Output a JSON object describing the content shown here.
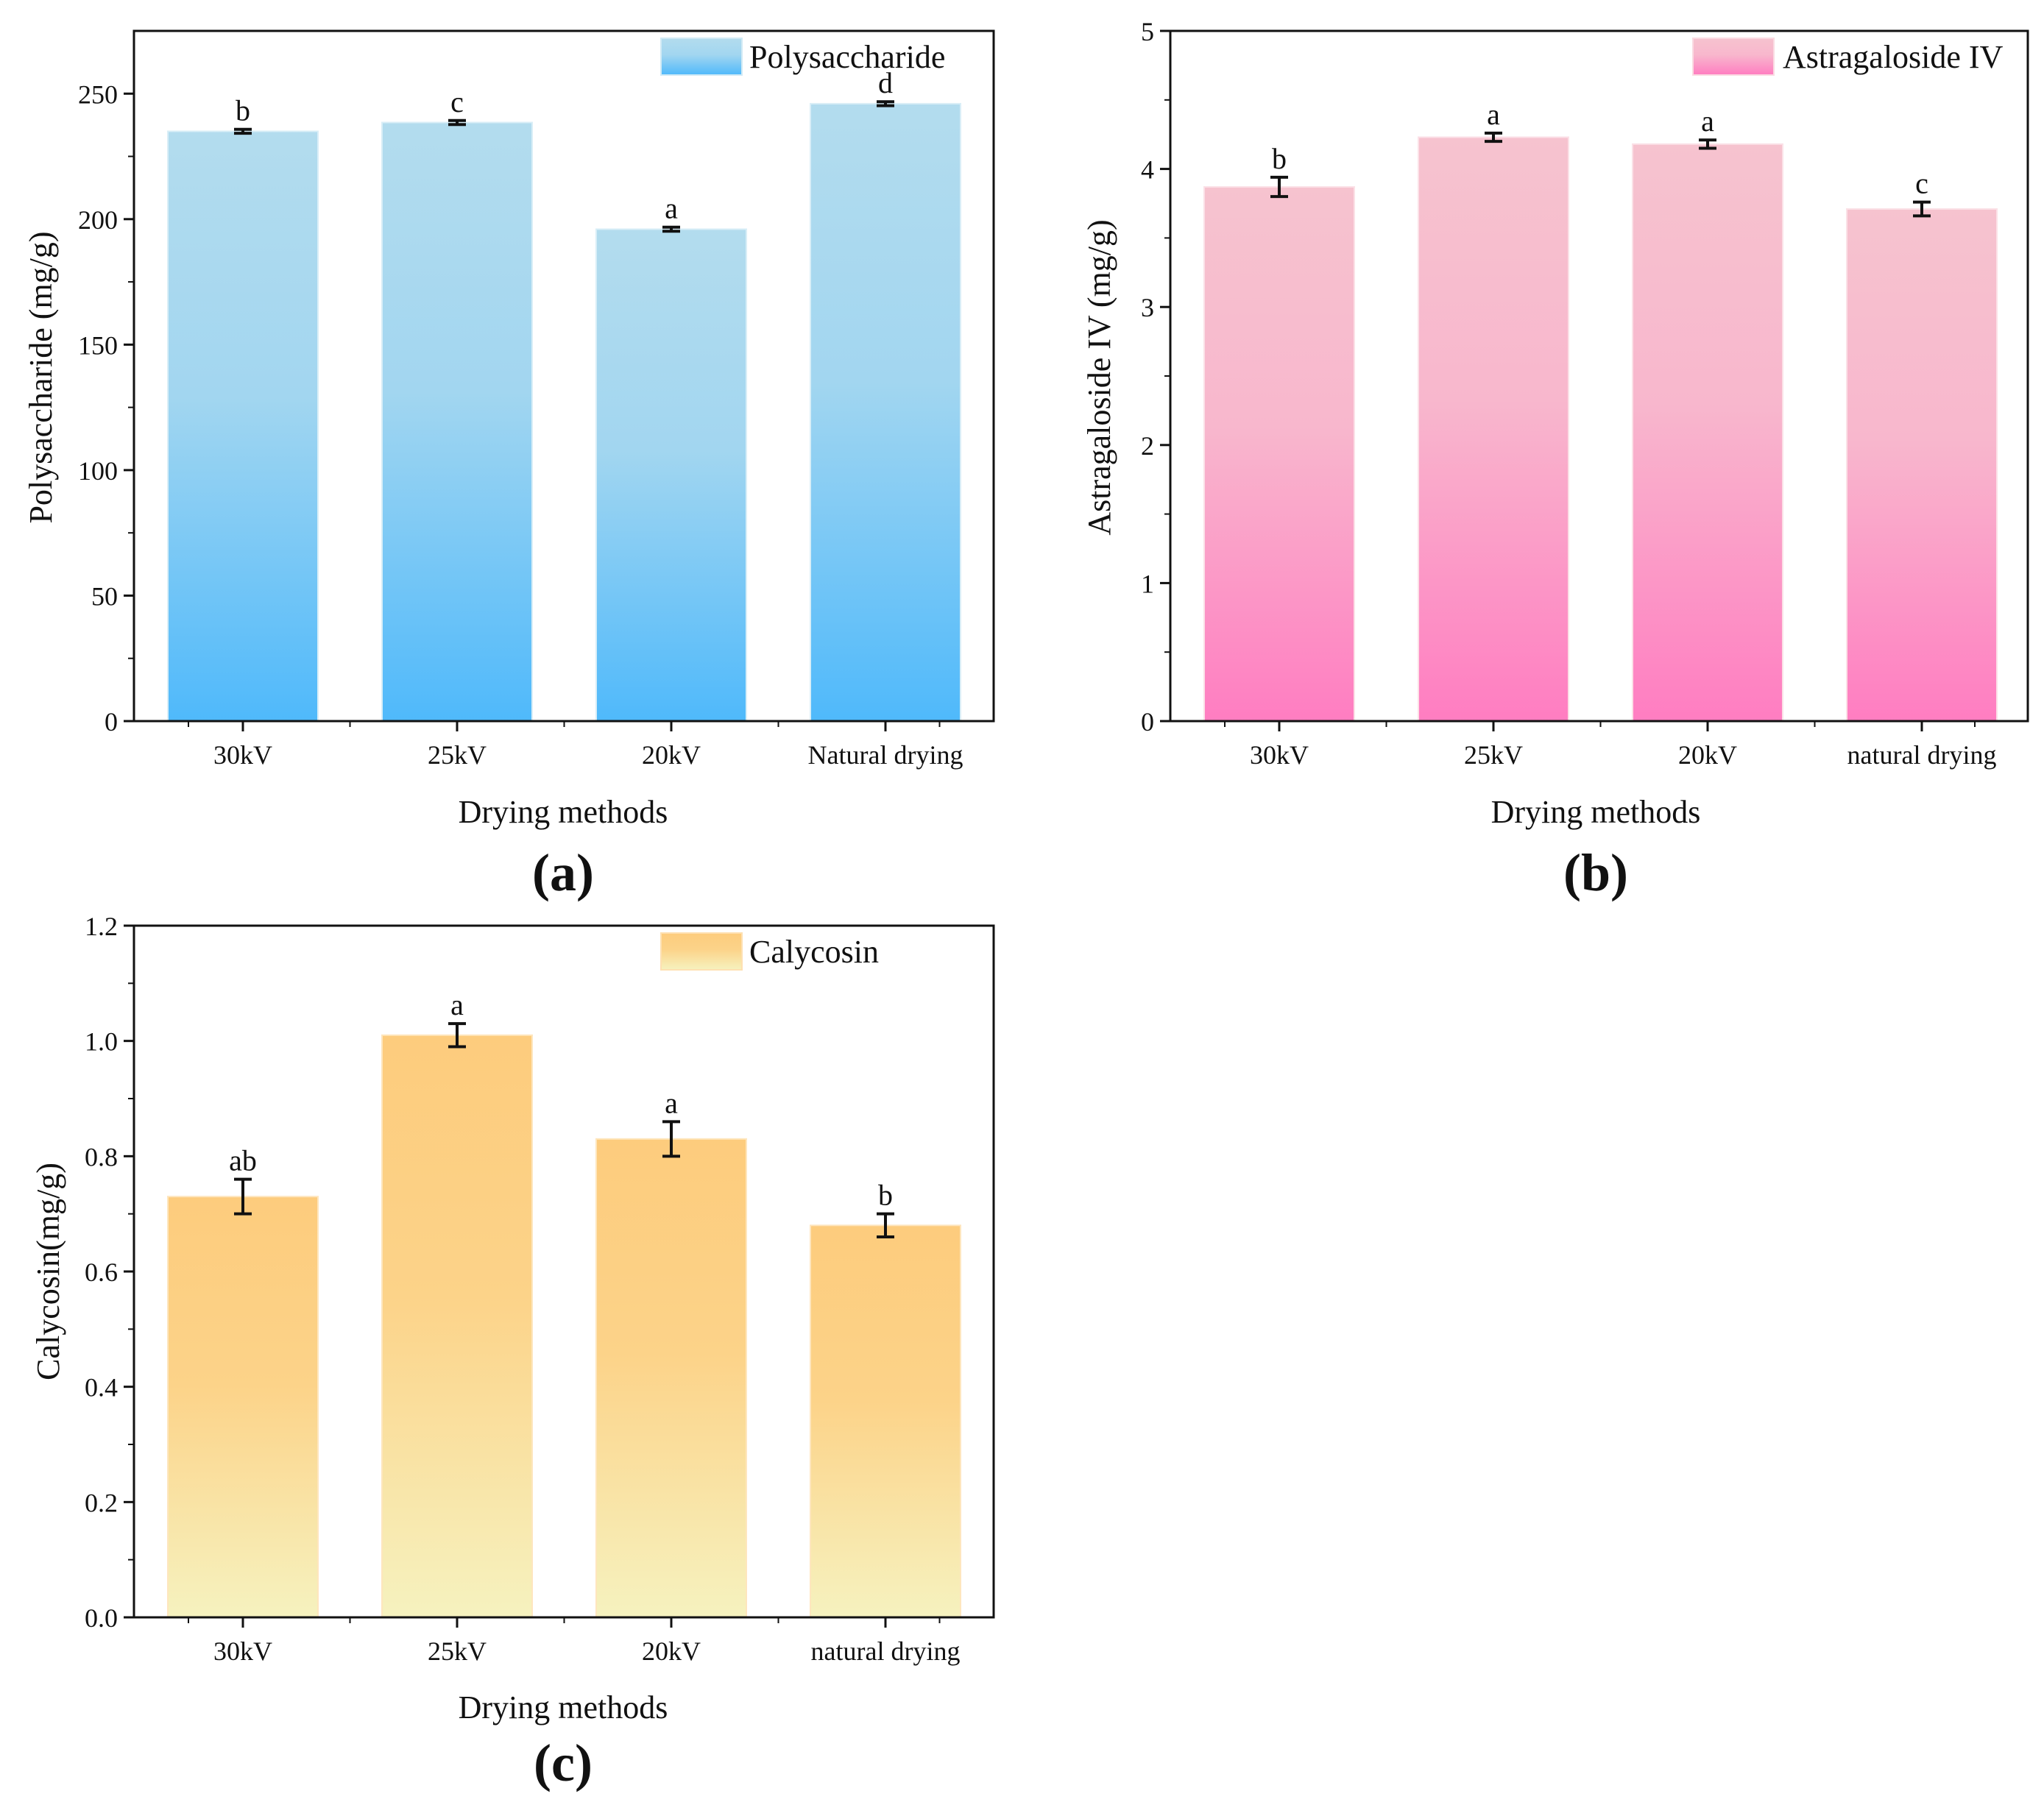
{
  "chart_data": [
    {
      "id": "a",
      "type": "bar",
      "panel_label": "(a)",
      "xlabel": "Drying methods",
      "ylabel": "Polysaccharide (mg/g)",
      "legend": "Polysaccharide",
      "legend_position": "top-right",
      "categories": [
        "30kV",
        "25kV",
        "20kV",
        "Natural drying"
      ],
      "values": [
        235,
        238.5,
        196,
        246
      ],
      "errors": [
        0.8,
        0.8,
        0.8,
        0.8
      ],
      "significance": [
        "b",
        "c",
        "a",
        "d"
      ],
      "ylim": [
        0,
        275
      ],
      "yticks": [
        0,
        50,
        100,
        150,
        200,
        250
      ],
      "ytick_labels": [
        "0",
        "50",
        "100",
        "150",
        "200",
        "250"
      ],
      "colors": {
        "top": "#b3dcee",
        "bottom": "#4fb9fb"
      }
    },
    {
      "id": "b",
      "type": "bar",
      "panel_label": "(b)",
      "xlabel": "Drying methods",
      "ylabel": "Astragaloside IV (mg/g)",
      "legend": "Astragaloside IV",
      "legend_position": "top-right",
      "categories": [
        "30kV",
        "25kV",
        "20kV",
        "natural drying"
      ],
      "values": [
        3.87,
        4.23,
        4.18,
        3.71
      ],
      "errors": [
        0.07,
        0.03,
        0.03,
        0.05
      ],
      "significance": [
        "b",
        "a",
        "a",
        "c"
      ],
      "ylim": [
        0,
        5
      ],
      "yticks": [
        0,
        1,
        2,
        3,
        4,
        5
      ],
      "ytick_labels": [
        "0",
        "1",
        "2",
        "3",
        "4",
        "5"
      ],
      "colors": {
        "top": "#f6c3cf",
        "bottom": "#ff7dc1"
      }
    },
    {
      "id": "c",
      "type": "bar",
      "panel_label": "(c)",
      "xlabel": "Drying methods",
      "ylabel": "Calycosin(mg/g)",
      "legend": "Calycosin",
      "legend_position": "top-center",
      "categories": [
        "30kV",
        "25kV",
        "20kV",
        "natural drying"
      ],
      "values": [
        0.73,
        1.01,
        0.83,
        0.68
      ],
      "errors": [
        0.03,
        0.02,
        0.03,
        0.02
      ],
      "significance": [
        "ab",
        "a",
        "a",
        "b"
      ],
      "ylim": [
        0,
        1.2
      ],
      "yticks": [
        0,
        0.2,
        0.4,
        0.6,
        0.8,
        1.0,
        1.2
      ],
      "ytick_labels": [
        "0.0",
        "0.2",
        "0.4",
        "0.6",
        "0.8",
        "1.0",
        "1.2"
      ],
      "colors": {
        "top": "#fdcc7d",
        "bottom": "#f6f2bf"
      }
    }
  ]
}
